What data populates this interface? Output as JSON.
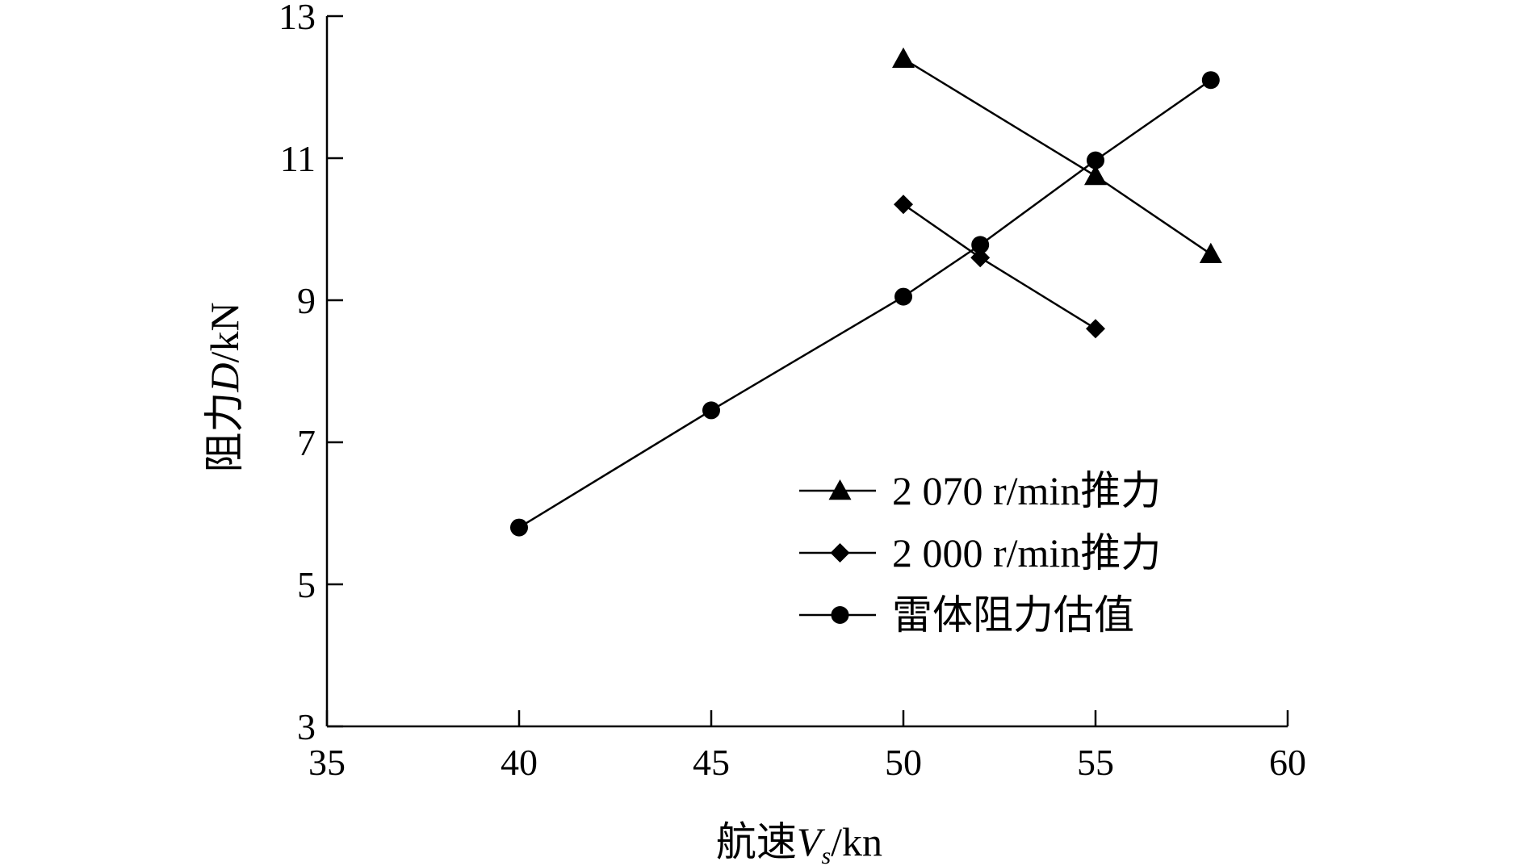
{
  "chart_data": {
    "type": "line",
    "title": "",
    "xlabel": {
      "main": "航速",
      "var": "V",
      "sub": "s",
      "unit": "/kn"
    },
    "ylabel": {
      "main": "阻力",
      "var": "D",
      "unit": "/kN"
    },
    "xlim": [
      35,
      60
    ],
    "ylim": [
      3,
      13
    ],
    "xticks": [
      35,
      40,
      45,
      50,
      55,
      60
    ],
    "yticks": [
      3,
      5,
      7,
      9,
      11,
      13
    ],
    "grid": false,
    "legend_position": "lower-right",
    "series": [
      {
        "name": "2 070 r/min推力",
        "marker": "triangle",
        "x": [
          50,
          55,
          58
        ],
        "y": [
          12.4,
          10.75,
          9.65
        ]
      },
      {
        "name": "2 000 r/min推力",
        "marker": "diamond",
        "x": [
          50,
          52,
          55
        ],
        "y": [
          10.35,
          9.6,
          8.6
        ]
      },
      {
        "name": "雷体阻力估值",
        "marker": "circle",
        "x": [
          40,
          45,
          50,
          52,
          55,
          58
        ],
        "y": [
          5.8,
          7.45,
          9.05,
          9.78,
          10.97,
          12.1
        ]
      }
    ]
  }
}
